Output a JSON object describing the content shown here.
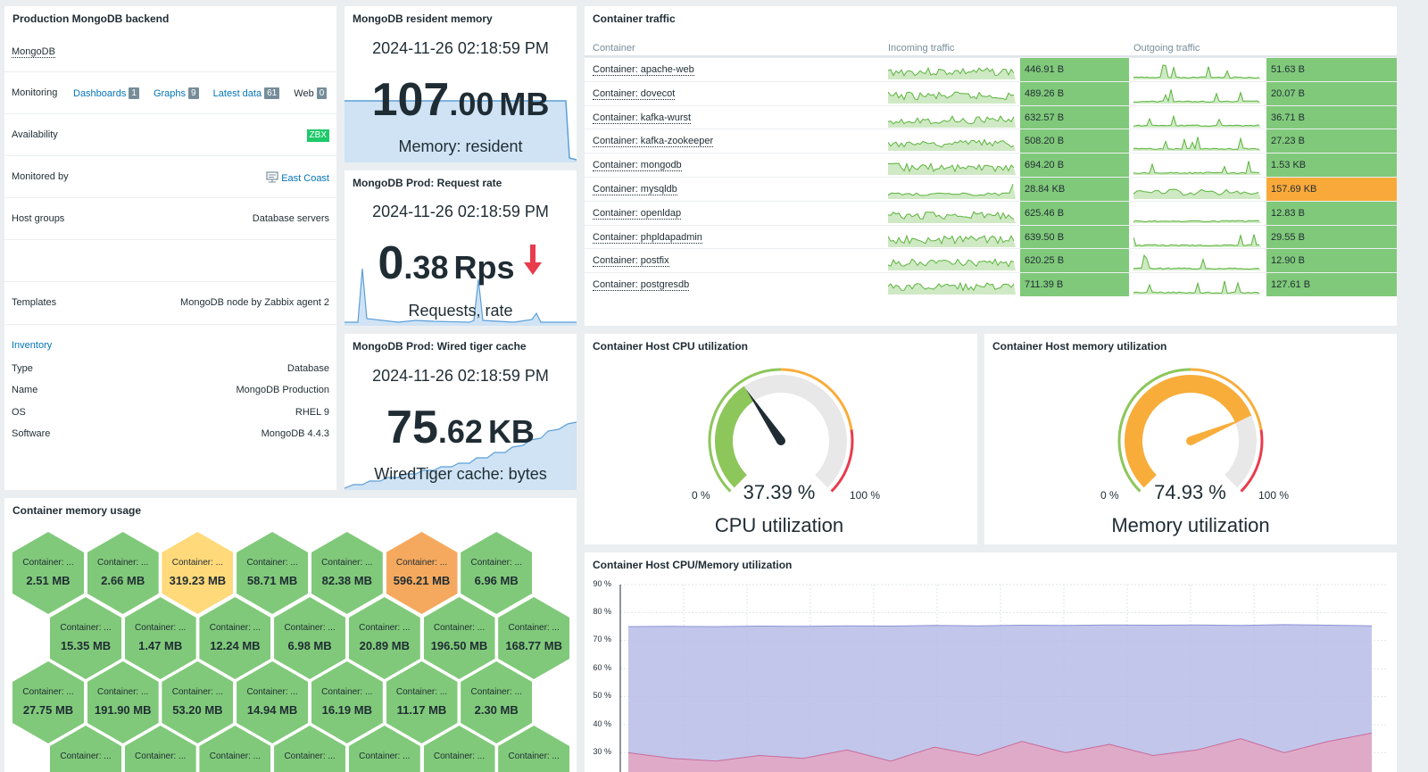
{
  "colors": {
    "green": "#80c97a",
    "yellow": "#ffd97a",
    "orange": "#f5a95e",
    "orange_cell": "#f9a93a",
    "accent": "#0275b8",
    "gauge_green": "#8dc65a",
    "gauge_orange": "#f8ad3b",
    "gauge_red": "#e83c4c",
    "cpu_area": "#b7bce8",
    "mem_area": "#e2a6c4"
  },
  "host_card": {
    "title": "Production MongoDB backend",
    "host_name": "MongoDB",
    "monitoring_label": "Monitoring",
    "links": [
      {
        "label": "Dashboards",
        "count": "1"
      },
      {
        "label": "Graphs",
        "count": "9"
      },
      {
        "label": "Latest data",
        "count": "61"
      },
      {
        "label": "Web",
        "count": "0"
      }
    ],
    "availability_label": "Availability",
    "availability_badge": "ZBX",
    "monitored_by_label": "Monitored by",
    "monitored_by_value": "East Coast",
    "monitored_by_icon": "proxy-icon",
    "host_groups_label": "Host groups",
    "host_groups_value": "Database servers",
    "templates_label": "Templates",
    "templates_value": "MongoDB node by Zabbix agent 2",
    "inventory_label": "Inventory",
    "inventory": [
      {
        "key": "Type",
        "value": "Database"
      },
      {
        "key": "Name",
        "value": "MongoDB Production"
      },
      {
        "key": "OS",
        "value": "RHEL 9"
      },
      {
        "key": "Software",
        "value": "MongoDB 4.4.3"
      }
    ]
  },
  "item_values": [
    {
      "title": "MongoDB resident memory",
      "time": "2024-11-26 02:18:59 PM",
      "int": "107",
      "dec": ".00",
      "unit": "MB",
      "desc": "Memory: resident"
    },
    {
      "title": "MongoDB Prod: Request rate",
      "time": "2024-11-26 02:18:59 PM",
      "int": "0",
      "dec": ".38",
      "unit": "Rps",
      "desc": "Requests, rate",
      "trend_icon": "arrow-down-icon"
    },
    {
      "title": "MongoDB Prod: Wired tiger cache",
      "time": "2024-11-26 02:18:59 PM",
      "int": "75",
      "dec": ".62",
      "unit": "KB",
      "desc": "WiredTiger cache: bytes"
    }
  ],
  "traffic": {
    "title": "Container traffic",
    "headers": [
      "Container",
      "Incoming traffic",
      "Outgoing traffic"
    ],
    "rows": [
      {
        "name": "Container: apache-web",
        "in": "446.91 B",
        "out": "51.63 B",
        "out_status": "ok"
      },
      {
        "name": "Container: dovecot",
        "in": "489.26 B",
        "out": "20.07 B",
        "out_status": "ok"
      },
      {
        "name": "Container: kafka-wurst",
        "in": "632.57 B",
        "out": "36.71 B",
        "out_status": "ok"
      },
      {
        "name": "Container: kafka-zookeeper",
        "in": "508.20 B",
        "out": "27.23 B",
        "out_status": "ok"
      },
      {
        "name": "Container: mongodb",
        "in": "694.20 B",
        "out": "1.53 KB",
        "out_status": "ok"
      },
      {
        "name": "Container: mysqldb",
        "in": "28.84 KB",
        "out": "157.69 KB",
        "out_status": "warn"
      },
      {
        "name": "Container: openldap",
        "in": "625.46 B",
        "out": "12.83 B",
        "out_status": "ok"
      },
      {
        "name": "Container: phpldapadmin",
        "in": "639.50 B",
        "out": "29.55 B",
        "out_status": "ok"
      },
      {
        "name": "Container: postfix",
        "in": "620.25 B",
        "out": "12.90 B",
        "out_status": "ok"
      },
      {
        "name": "Container: postgresdb",
        "in": "711.39 B",
        "out": "127.61 B",
        "out_status": "ok"
      }
    ]
  },
  "gauges": [
    {
      "title": "Container Host CPU utilization",
      "value": 37.39,
      "value_text": "37.39 %",
      "min": "0 %",
      "max": "100 %",
      "label": "CPU utilization"
    },
    {
      "title": "Container Host memory utilization",
      "value": 74.93,
      "value_text": "74.93 %",
      "min": "0 %",
      "max": "100 %",
      "label": "Memory utilization"
    }
  ],
  "honeycomb": {
    "title": "Container memory usage",
    "cell_label": "Container: ...",
    "rows": [
      [
        {
          "v": "2.51 MB",
          "s": "green"
        },
        {
          "v": "2.66 MB",
          "s": "green"
        },
        {
          "v": "319.23 MB",
          "s": "yellow"
        },
        {
          "v": "58.71 MB",
          "s": "green"
        },
        {
          "v": "82.38 MB",
          "s": "green"
        },
        {
          "v": "596.21 MB",
          "s": "orange"
        },
        {
          "v": "6.96 MB",
          "s": "green"
        }
      ],
      [
        {
          "v": "15.35 MB",
          "s": "green"
        },
        {
          "v": "1.47 MB",
          "s": "green"
        },
        {
          "v": "12.24 MB",
          "s": "green"
        },
        {
          "v": "6.98 MB",
          "s": "green"
        },
        {
          "v": "20.89 MB",
          "s": "green"
        },
        {
          "v": "196.50 MB",
          "s": "green"
        },
        {
          "v": "168.77 MB",
          "s": "green"
        }
      ],
      [
        {
          "v": "27.75 MB",
          "s": "green"
        },
        {
          "v": "191.90 MB",
          "s": "green"
        },
        {
          "v": "53.20 MB",
          "s": "green"
        },
        {
          "v": "14.94 MB",
          "s": "green"
        },
        {
          "v": "16.19 MB",
          "s": "green"
        },
        {
          "v": "11.17 MB",
          "s": "green"
        },
        {
          "v": "2.30 MB",
          "s": "green"
        }
      ],
      [
        {
          "v": "",
          "s": "green"
        },
        {
          "v": "",
          "s": "green"
        },
        {
          "v": "",
          "s": "green"
        },
        {
          "v": "",
          "s": "green"
        },
        {
          "v": "",
          "s": "green"
        },
        {
          "v": "",
          "s": "green"
        },
        {
          "v": "",
          "s": "green"
        }
      ]
    ]
  },
  "graph": {
    "title": "Container Host CPU/Memory utilization",
    "y_ticks": [
      "90 %",
      "80 %",
      "70 %",
      "60 %",
      "50 %",
      "40 %",
      "30 %"
    ]
  },
  "chart_data": {
    "type": "area",
    "title": "Container Host CPU/Memory utilization",
    "ylim": [
      25,
      90
    ],
    "y_ticks": [
      90,
      80,
      70,
      60,
      50,
      40,
      30
    ],
    "series": [
      {
        "name": "",
        "values": [
          75,
          75.1,
          75,
          75.2,
          75.1,
          75.3,
          75.2,
          75.4,
          75.3,
          75.5,
          75.4,
          75.6,
          75.5,
          75.6,
          75.4,
          75.7,
          75.5,
          75.3
        ]
      },
      {
        "name": "",
        "values": [
          30,
          28,
          27,
          29,
          28,
          31,
          27,
          32,
          29,
          34,
          30,
          33,
          29,
          31,
          35,
          30,
          34,
          37
        ]
      }
    ]
  }
}
